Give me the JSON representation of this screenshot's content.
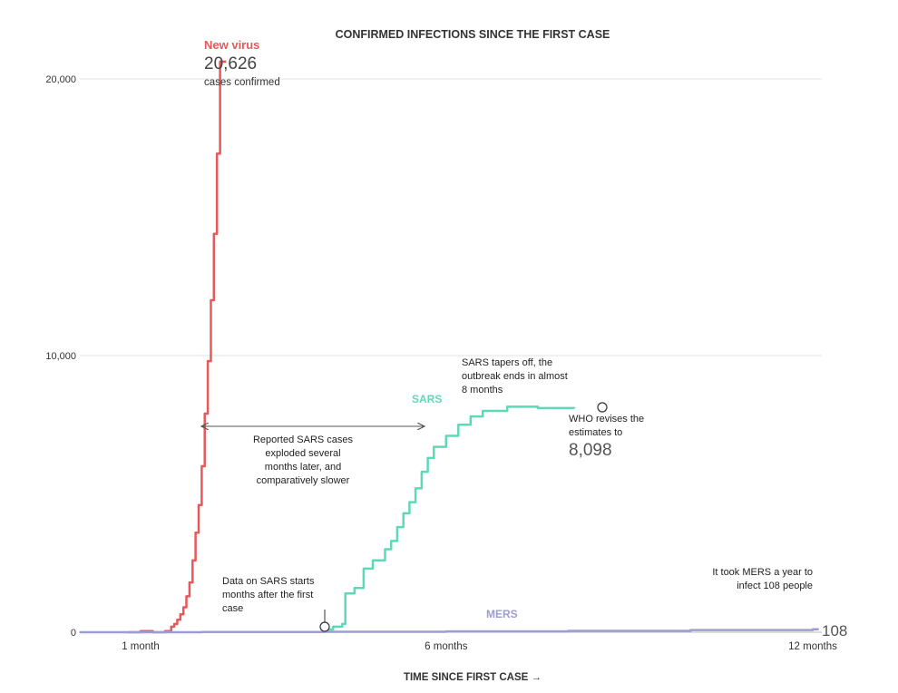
{
  "chart_data": {
    "type": "line",
    "title": "CONFIRMED INFECTIONS SINCE THE FIRST CASE",
    "xlabel": "TIME SINCE FIRST CASE →",
    "ylabel": "",
    "x_unit": "months since first case",
    "xlim": [
      0,
      12.3
    ],
    "ylim": [
      0,
      20700
    ],
    "grid": true,
    "y_ticks": [
      {
        "value": 0,
        "label": "0"
      },
      {
        "value": 10000,
        "label": "10,000"
      },
      {
        "value": 20000,
        "label": "20,000"
      }
    ],
    "x_ticks": [
      {
        "value": 1,
        "label": "1 month"
      },
      {
        "value": 6,
        "label": "6 months"
      },
      {
        "value": 12,
        "label": "12 months"
      }
    ],
    "series": [
      {
        "name": "New virus",
        "color": "#e8585a",
        "x": [
          0.8,
          1.0,
          1.1,
          1.2,
          1.3,
          1.4,
          1.5,
          1.55,
          1.6,
          1.65,
          1.7,
          1.75,
          1.8,
          1.85,
          1.9,
          1.95,
          2.0,
          2.05,
          2.1,
          2.15,
          2.2,
          2.25,
          2.3,
          2.35,
          2.4
        ],
        "y": [
          0,
          40,
          40,
          0,
          0,
          40,
          200,
          300,
          450,
          650,
          900,
          1300,
          1800,
          2600,
          3600,
          4600,
          6000,
          7900,
          9800,
          12000,
          14400,
          17300,
          20626,
          20626,
          20626
        ]
      },
      {
        "name": "SARS",
        "color": "#5ed9b8",
        "x": [
          4.0,
          4.15,
          4.3,
          4.35,
          4.5,
          4.65,
          4.8,
          5.0,
          5.1,
          5.2,
          5.3,
          5.4,
          5.5,
          5.6,
          5.7,
          5.8,
          6.0,
          6.2,
          6.4,
          6.6,
          7.0,
          7.5,
          8.0,
          8.1
        ],
        "y": [
          100,
          200,
          300,
          1400,
          1600,
          2300,
          2600,
          3000,
          3300,
          3800,
          4300,
          4700,
          5200,
          5800,
          6300,
          6700,
          7100,
          7500,
          7800,
          8000,
          8150,
          8100,
          8100,
          8098
        ]
      },
      {
        "name": "MERS",
        "color": "#9d9ed0",
        "x": [
          0,
          2,
          4,
          6,
          8,
          10,
          12,
          12.1
        ],
        "y": [
          0,
          5,
          15,
          30,
          50,
          80,
          108,
          108
        ]
      }
    ],
    "annotations": {
      "new_virus_value": "20,626",
      "new_virus_sub": "cases confirmed",
      "arrow_text": [
        "Reported SARS cases",
        "exploded several",
        "months later, and",
        "comparatively slower"
      ],
      "sars_start_text": [
        "Data on SARS starts",
        "months after the first",
        "case"
      ],
      "sars_tapers_text": [
        "SARS tapers off, the",
        "outbreak ends in almost",
        "8 months"
      ],
      "who_text": [
        "WHO revises the",
        "estimates to"
      ],
      "who_value": "8,098",
      "mers_text": [
        "It took MERS a year to",
        "infect 108 people"
      ],
      "mers_value": "108"
    }
  }
}
